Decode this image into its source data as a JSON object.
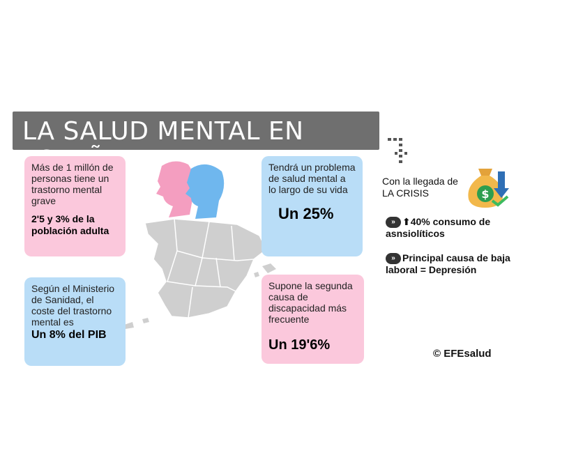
{
  "title": "LA SALUD MENTAL EN ESPAÑA",
  "box1": {
    "text": "Más de 1 millón de personas tiene un trastorno mental grave",
    "highlight": "2'5 y 3% de la población adulta"
  },
  "box2": {
    "text": "Tendrá un problema de salud mental a lo largo de su vida",
    "highlight": "Un 25%"
  },
  "box3": {
    "text": "Según el Ministerio de Sanidad, el coste del trastorno mental es",
    "highlight": "Un 8% del PIB"
  },
  "box4": {
    "text": "Supone la segunda causa de discapacidad más frecuente",
    "highlight": "Un 19'6%"
  },
  "crisis": {
    "label": "Con la llegada de LA CRISIS"
  },
  "fact1": "40% consumo de asnsiolíticos",
  "fact2": "Principal causa de baja laboral = Depresión",
  "credit": "© EFEsalud",
  "colors": {
    "pink": "#fbc8dc",
    "blue": "#b9ddf7",
    "title_bg": "#6f6f6f",
    "map": "#cfcfcf"
  },
  "icons": [
    "woman-profile-icon",
    "man-profile-icon",
    "spain-map",
    "money-bag-icon",
    "down-arrow-icon",
    "chevron-right-icon",
    "arrow-up-icon"
  ]
}
